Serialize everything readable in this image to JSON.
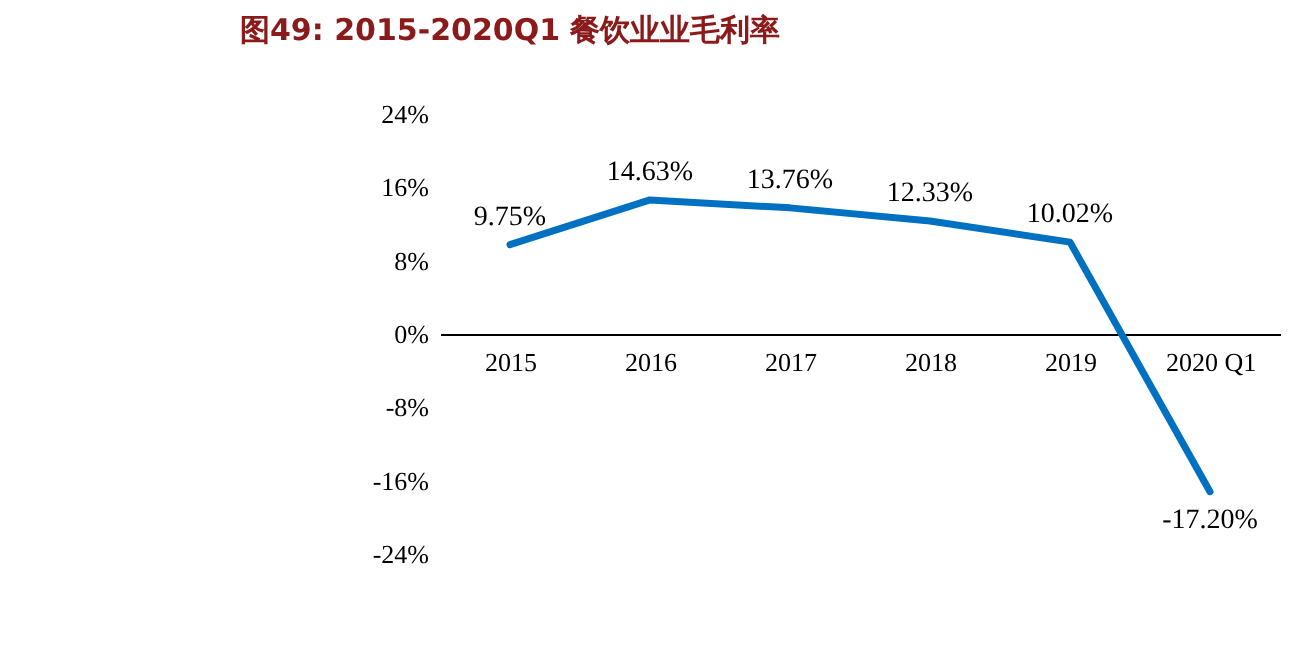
{
  "chart_data": {
    "type": "line",
    "title": "图49:    2015-2020Q1 餐饮业业毛利率",
    "categories": [
      "2015",
      "2016",
      "2017",
      "2018",
      "2019",
      "2020 Q1"
    ],
    "series": [
      {
        "color": "#0070c0",
        "values": [
          9.75,
          14.63,
          13.76,
          12.33,
          10.02,
          -17.2
        ],
        "value_labels": [
          "9.75%",
          "14.63%",
          "13.76%",
          "12.33%",
          "10.02%",
          "-17.20%"
        ]
      }
    ],
    "ylim": [
      -24,
      24
    ],
    "yticks": [
      {
        "value": -24,
        "label": "-24%"
      },
      {
        "value": -16,
        "label": "-16%"
      },
      {
        "value": -8,
        "label": "-8%"
      },
      {
        "value": 0,
        "label": "0%"
      },
      {
        "value": 8,
        "label": "8%"
      },
      {
        "value": 16,
        "label": "16%"
      },
      {
        "value": 24,
        "label": "24%"
      }
    ],
    "grid": false,
    "legend": false,
    "marker": "none",
    "line_style": "solid"
  }
}
